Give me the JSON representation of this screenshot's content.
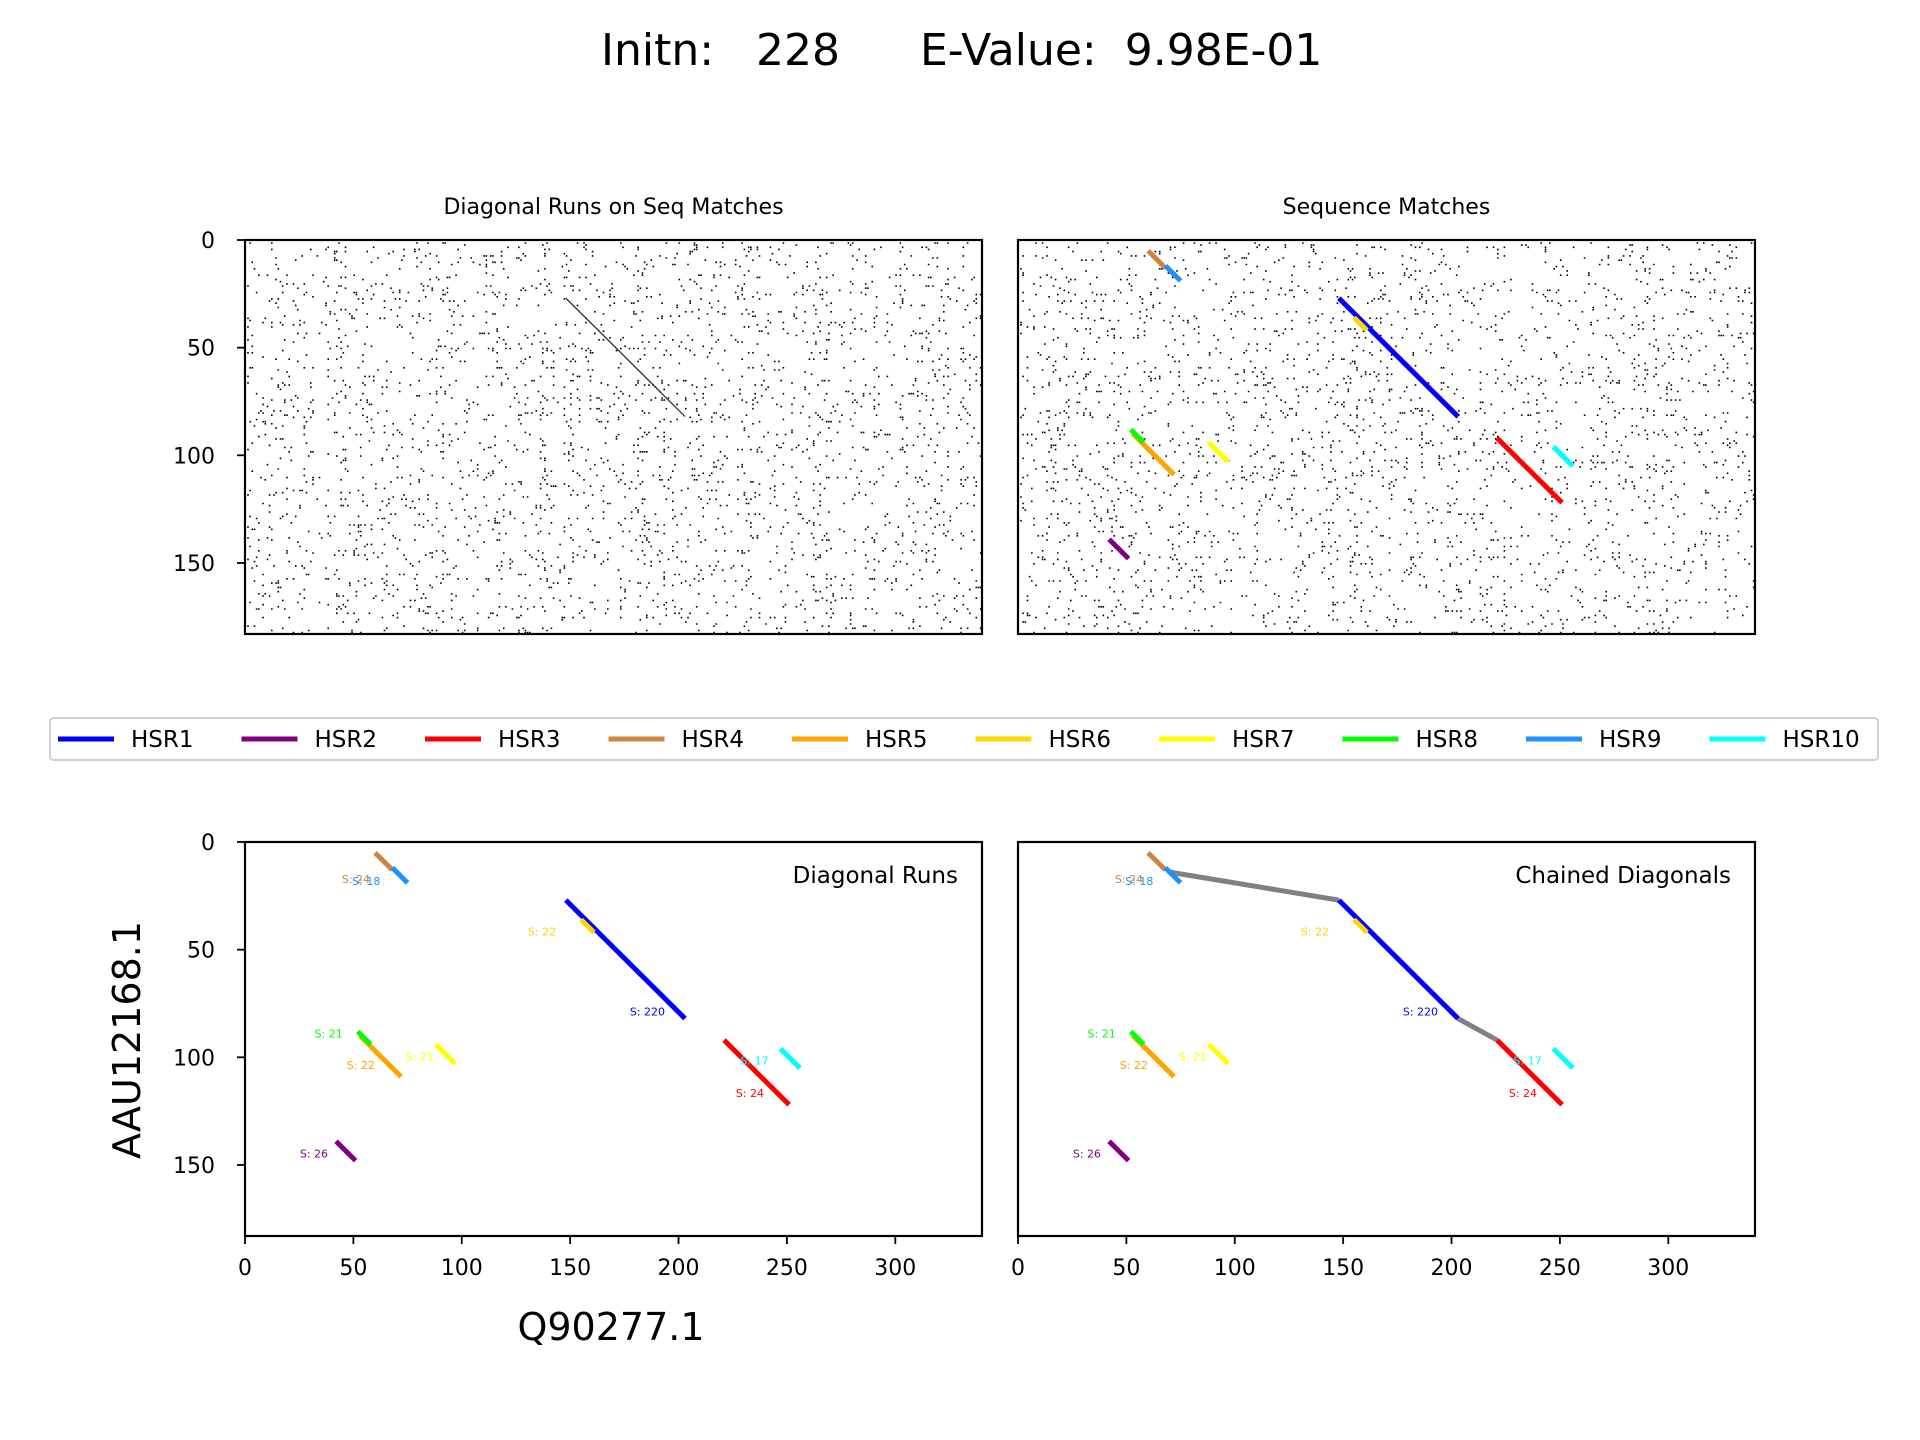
{
  "figure": {
    "title_initn": "Initn:   228",
    "title_evalue": "E-Value:  9.98E-01",
    "ylabel": "AAU12168.1",
    "xlabel": "Q90277.1",
    "colors": {
      "dots": "#000000",
      "chain": "#808080"
    }
  },
  "chart_data": [
    {
      "type": "scatter",
      "panel": "top-left",
      "title": "Diagonal Runs on Seq Matches",
      "xlim": [
        0,
        340
      ],
      "ylim": [
        183,
        0
      ],
      "x_ticks": [],
      "y_ticks": [
        0,
        50,
        100,
        150
      ],
      "dot_matrix": "random sequence-match dots (dense, not individually readable)",
      "faint_diagonal": {
        "x": [
          148,
          203
        ],
        "y": [
          27,
          82
        ]
      }
    },
    {
      "type": "scatter",
      "panel": "top-right",
      "title": "Sequence Matches",
      "xlim": [
        0,
        340
      ],
      "ylim": [
        183,
        0
      ],
      "x_ticks": [],
      "y_ticks": [],
      "segments": [
        {
          "id": "HSR1",
          "x": [
            148,
            203
          ],
          "y": [
            27,
            82
          ]
        },
        {
          "id": "HSR2",
          "x": [
            42,
            51
          ],
          "y": [
            139,
            148
          ]
        },
        {
          "id": "HSR3",
          "x": [
            221,
            251
          ],
          "y": [
            92,
            122
          ]
        },
        {
          "id": "HSR4",
          "x": [
            60,
            68
          ],
          "y": [
            5,
            13
          ]
        },
        {
          "id": "HSR5",
          "x": [
            53,
            72
          ],
          "y": [
            90,
            109
          ]
        },
        {
          "id": "HSR6",
          "x": [
            155,
            161
          ],
          "y": [
            36,
            42
          ]
        },
        {
          "id": "HSR7",
          "x": [
            88,
            97
          ],
          "y": [
            94,
            103
          ]
        },
        {
          "id": "HSR8",
          "x": [
            52,
            58
          ],
          "y": [
            88,
            94
          ]
        },
        {
          "id": "HSR9",
          "x": [
            68,
            75
          ],
          "y": [
            12,
            19
          ]
        },
        {
          "id": "HSR10",
          "x": [
            247,
            256
          ],
          "y": [
            96,
            105
          ]
        }
      ]
    },
    {
      "type": "line",
      "panel": "bottom-left",
      "annotation": "Diagonal Runs",
      "xlim": [
        0,
        340
      ],
      "ylim": [
        183,
        0
      ],
      "x_ticks": [
        0,
        50,
        100,
        150,
        200,
        250,
        300
      ],
      "y_ticks": [
        0,
        50,
        100,
        150
      ],
      "segments": [
        {
          "id": "HSR1",
          "x": [
            148,
            203
          ],
          "y": [
            27,
            82
          ],
          "score_label": "S: 220"
        },
        {
          "id": "HSR2",
          "x": [
            42,
            51
          ],
          "y": [
            139,
            148
          ],
          "score_label": "S: 26"
        },
        {
          "id": "HSR3",
          "x": [
            221,
            251
          ],
          "y": [
            92,
            122
          ],
          "score_label": "S: 24"
        },
        {
          "id": "HSR4",
          "x": [
            60,
            68
          ],
          "y": [
            5,
            13
          ],
          "score_label": "S: 24"
        },
        {
          "id": "HSR5",
          "x": [
            53,
            72
          ],
          "y": [
            90,
            109
          ],
          "score_label": "S: 22"
        },
        {
          "id": "HSR6",
          "x": [
            155,
            161
          ],
          "y": [
            36,
            42
          ],
          "score_label": "S: 22"
        },
        {
          "id": "HSR7",
          "x": [
            88,
            97
          ],
          "y": [
            94,
            103
          ],
          "score_label": "S: 21"
        },
        {
          "id": "HSR8",
          "x": [
            52,
            58
          ],
          "y": [
            88,
            94
          ],
          "score_label": "S: 21"
        },
        {
          "id": "HSR9",
          "x": [
            68,
            75
          ],
          "y": [
            12,
            19
          ],
          "score_label": "S: 18"
        },
        {
          "id": "HSR10",
          "x": [
            247,
            256
          ],
          "y": [
            96,
            105
          ],
          "score_label": "S: 17"
        }
      ]
    },
    {
      "type": "line",
      "panel": "bottom-right",
      "annotation": "Chained Diagonals",
      "xlim": [
        0,
        340
      ],
      "ylim": [
        183,
        0
      ],
      "x_ticks": [
        0,
        50,
        100,
        150,
        200,
        250,
        300
      ],
      "y_ticks": [],
      "chain_links": [
        {
          "x": [
            70,
            148
          ],
          "y": [
            14,
            27
          ]
        },
        {
          "x": [
            203,
            221
          ],
          "y": [
            82,
            92
          ]
        }
      ],
      "segments": [
        {
          "id": "HSR1",
          "x": [
            148,
            203
          ],
          "y": [
            27,
            82
          ],
          "score_label": "S: 220"
        },
        {
          "id": "HSR2",
          "x": [
            42,
            51
          ],
          "y": [
            139,
            148
          ],
          "score_label": "S: 26"
        },
        {
          "id": "HSR3",
          "x": [
            221,
            251
          ],
          "y": [
            92,
            122
          ],
          "score_label": "S: 24"
        },
        {
          "id": "HSR4",
          "x": [
            60,
            68
          ],
          "y": [
            5,
            13
          ],
          "score_label": "S: 24"
        },
        {
          "id": "HSR5",
          "x": [
            53,
            72
          ],
          "y": [
            90,
            109
          ],
          "score_label": "S: 22"
        },
        {
          "id": "HSR6",
          "x": [
            155,
            161
          ],
          "y": [
            36,
            42
          ],
          "score_label": "S: 22"
        },
        {
          "id": "HSR7",
          "x": [
            88,
            97
          ],
          "y": [
            94,
            103
          ],
          "score_label": "S: 21"
        },
        {
          "id": "HSR8",
          "x": [
            52,
            58
          ],
          "y": [
            88,
            94
          ],
          "score_label": "S: 21"
        },
        {
          "id": "HSR9",
          "x": [
            68,
            75
          ],
          "y": [
            12,
            19
          ],
          "score_label": "S: 18"
        },
        {
          "id": "HSR10",
          "x": [
            247,
            256
          ],
          "y": [
            96,
            105
          ],
          "score_label": "S: 17"
        }
      ]
    }
  ],
  "legend": {
    "placement": "center, between top and bottom rows",
    "items": [
      {
        "label": "HSR1",
        "color": "#0000ff"
      },
      {
        "label": "HSR2",
        "color": "#800080"
      },
      {
        "label": "HSR3",
        "color": "#ff0000"
      },
      {
        "label": "HSR4",
        "color": "#cd853f"
      },
      {
        "label": "HSR5",
        "color": "#ffa500"
      },
      {
        "label": "HSR6",
        "color": "#ffd700"
      },
      {
        "label": "HSR7",
        "color": "#ffff00"
      },
      {
        "label": "HSR8",
        "color": "#00ff00"
      },
      {
        "label": "HSR9",
        "color": "#1e90ff"
      },
      {
        "label": "HSR10",
        "color": "#00ffff"
      }
    ]
  }
}
